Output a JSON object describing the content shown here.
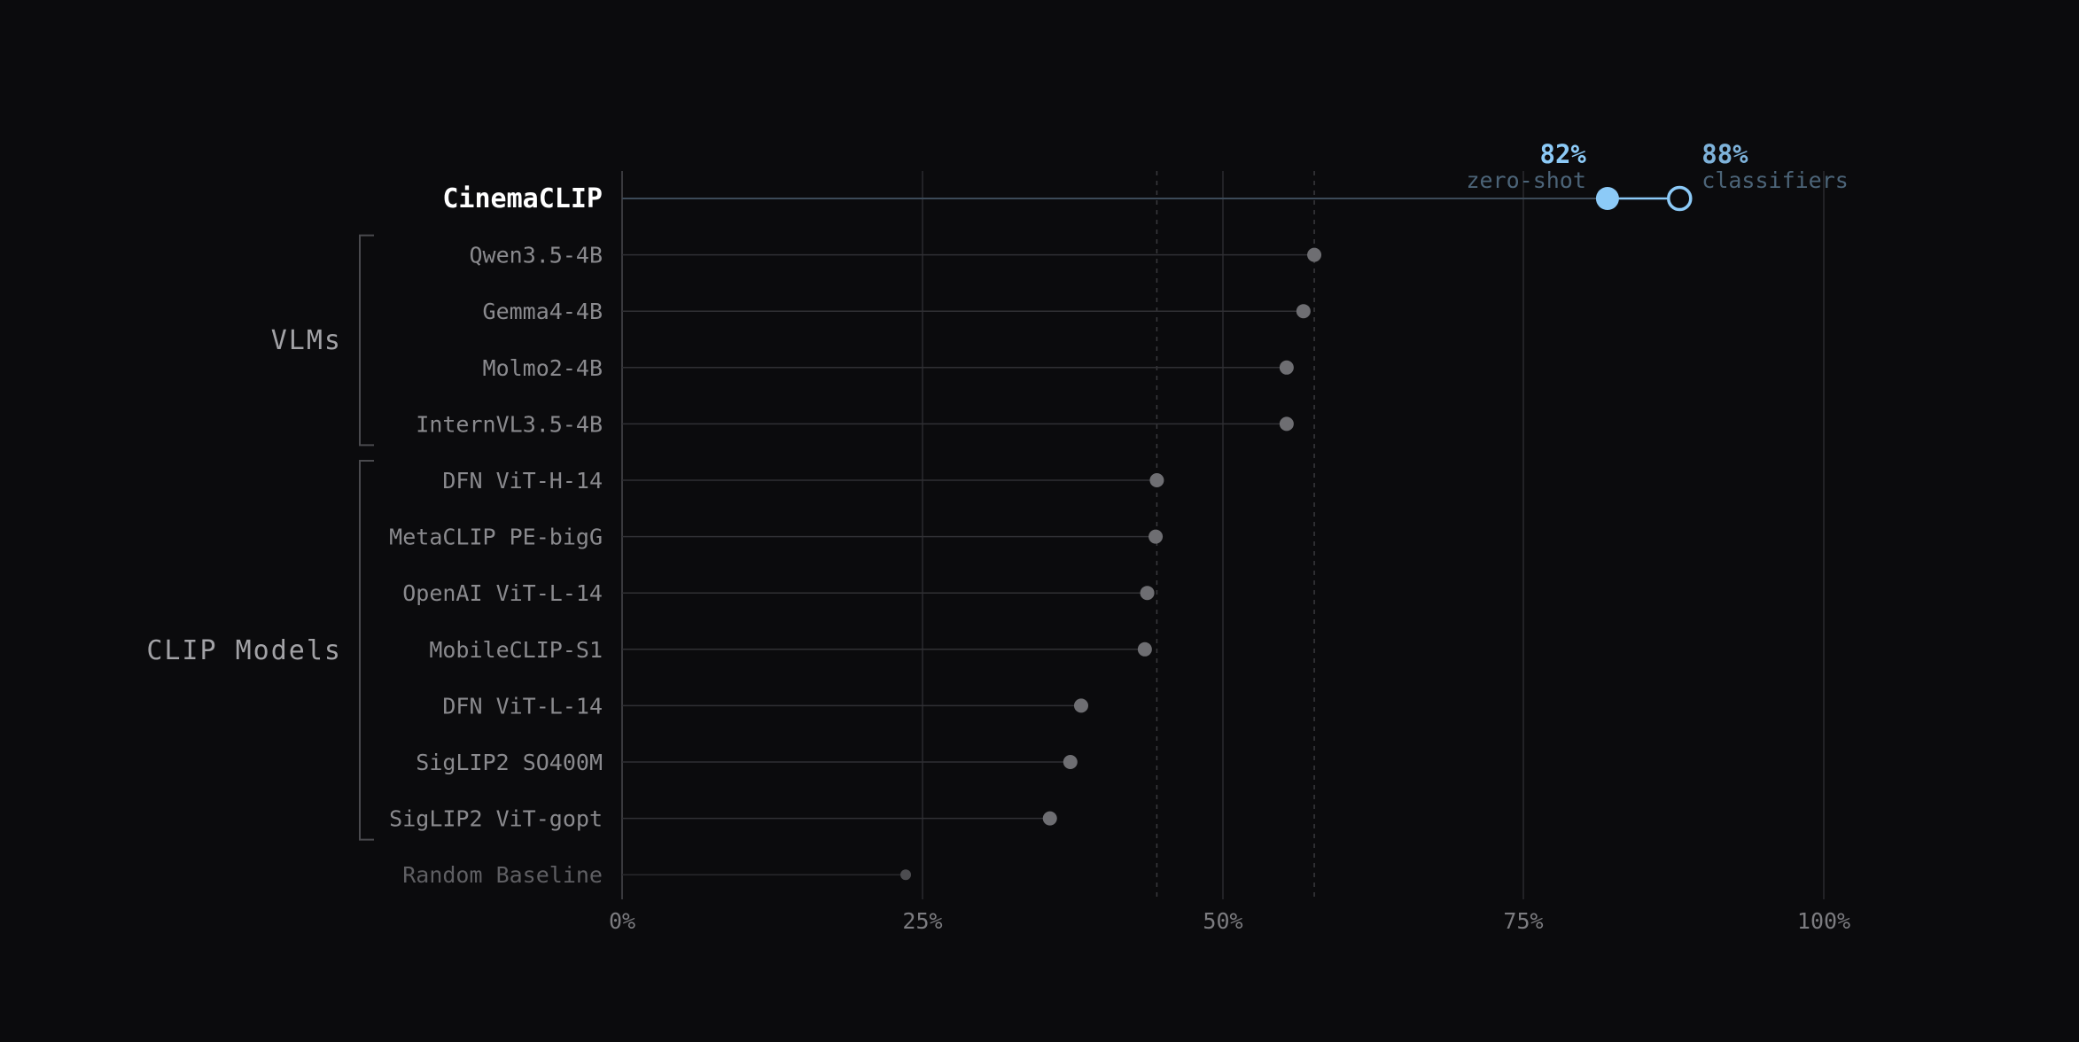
{
  "chart_data": {
    "type": "lollipop",
    "title": "",
    "xlabel": "",
    "ylabel": "",
    "xlim": [
      0,
      100
    ],
    "x_ticks": [
      0,
      25,
      50,
      75,
      100
    ],
    "x_tick_labels": [
      "0%",
      "25%",
      "50%",
      "75%",
      "100%"
    ],
    "reference_lines": [
      44.5,
      57.6
    ],
    "highlight": {
      "name": "CinemaCLIP",
      "zero_shot": 82,
      "classifiers": 88,
      "zero_shot_value_label": "82%",
      "zero_shot_caption": "zero-shot",
      "classifiers_value_label": "88%",
      "classifiers_caption": "classifiers",
      "color": "#8ccaf7",
      "caption_color": "#4c6478"
    },
    "groups": [
      {
        "label": "VLMs",
        "items": [
          {
            "name": "Qwen3.5-4B",
            "value": 57.6
          },
          {
            "name": "Gemma4-4B",
            "value": 56.7
          },
          {
            "name": "Molmo2-4B",
            "value": 55.3
          },
          {
            "name": "InternVL3.5-4B",
            "value": 55.3
          }
        ]
      },
      {
        "label": "CLIP Models",
        "items": [
          {
            "name": "DFN ViT-H-14",
            "value": 44.5
          },
          {
            "name": "MetaCLIP PE-bigG",
            "value": 44.4
          },
          {
            "name": "OpenAI ViT-L-14",
            "value": 43.7
          },
          {
            "name": "MobileCLIP-S1",
            "value": 43.5
          },
          {
            "name": "DFN ViT-L-14",
            "value": 38.2
          },
          {
            "name": "SigLIP2 SO400M",
            "value": 37.3
          },
          {
            "name": "SigLIP2 ViT-gopt",
            "value": 35.6
          }
        ]
      }
    ],
    "baseline": {
      "name": "Random Baseline",
      "value": 23.6
    },
    "colors": {
      "background": "#0b0b0d",
      "grid": "#2a2a2e",
      "stem": "#303034",
      "dot": "#6e6e72",
      "baseline_dot": "#4c4c50",
      "highlight_stem": "#3c4a58"
    }
  }
}
